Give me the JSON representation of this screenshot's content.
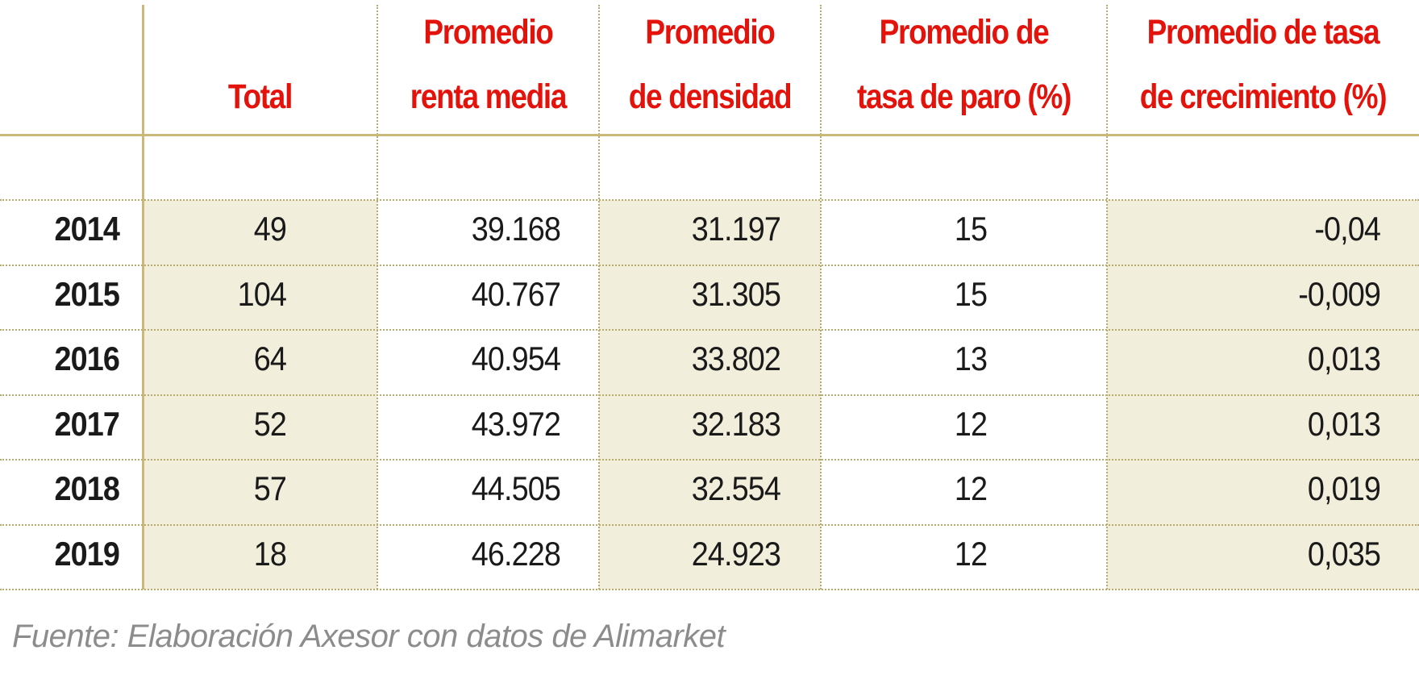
{
  "chart_data": {
    "type": "table",
    "columns": [
      {
        "lines": [
          "",
          "Total"
        ]
      },
      {
        "lines": [
          "Promedio",
          "renta media"
        ]
      },
      {
        "lines": [
          "Promedio",
          "de densidad"
        ]
      },
      {
        "lines": [
          "Promedio de",
          "tasa de paro (%)"
        ]
      },
      {
        "lines": [
          "Promedio de tasa",
          "de crecimiento (%)"
        ]
      }
    ],
    "rows": [
      {
        "year": "2014",
        "values": [
          "49",
          "39.168",
          "31.197",
          "15",
          "-0,04"
        ]
      },
      {
        "year": "2015",
        "values": [
          "104",
          "40.767",
          "31.305",
          "15",
          "-0,009"
        ]
      },
      {
        "year": "2016",
        "values": [
          "64",
          "40.954",
          "33.802",
          "13",
          "0,013"
        ]
      },
      {
        "year": "2017",
        "values": [
          "52",
          "43.972",
          "32.183",
          "12",
          "0,013"
        ]
      },
      {
        "year": "2018",
        "values": [
          "57",
          "44.505",
          "32.554",
          "12",
          "0,019"
        ]
      },
      {
        "year": "2019",
        "values": [
          "18",
          "46.228",
          "24.923",
          "12",
          "0,035"
        ]
      }
    ]
  },
  "source": "Fuente: Elaboración Axesor con datos de Alimarket",
  "colors": {
    "header_text": "#e3120b",
    "shade": "#f1efdc",
    "rule": "#cbb979",
    "body_text": "#1a1a1a",
    "source_text": "#8c8c8c"
  }
}
